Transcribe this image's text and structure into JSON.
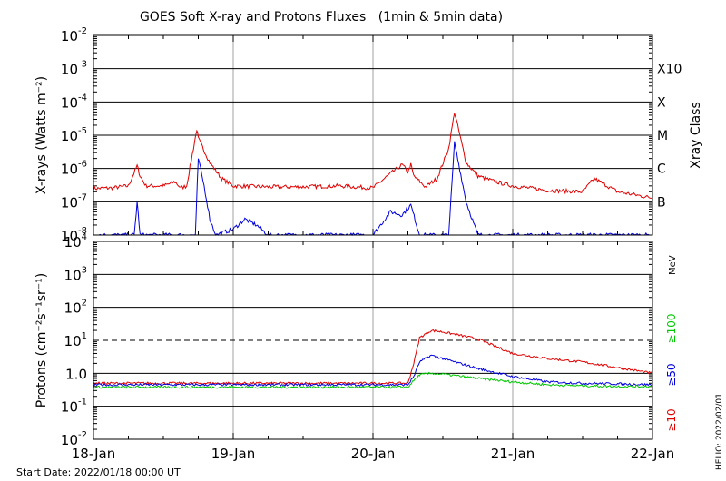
{
  "title": "GOES Soft X-ray and Protons Fluxes   (1min & 5min data)",
  "start_date": "Start Date: 2022/01/18 00:00 UT",
  "helio_stamp": "HELIO: 2022/02/01",
  "x_tick_labels": [
    "18-Jan",
    "19-Jan",
    "20-Jan",
    "21-Jan",
    "22-Jan"
  ],
  "colors": {
    "red": "#e00000",
    "blue": "#0000e0",
    "green": "#00c800",
    "grid_gray": "#a0a0a0"
  },
  "chart_data": [
    {
      "type": "line",
      "name": "xray",
      "ylabel": "X-rays (Watts m⁻²)",
      "yscale": "log",
      "ylim": [
        1e-08,
        0.01
      ],
      "y_tick_exponents": [
        -8,
        -7,
        -6,
        -5,
        -4,
        -3,
        -2
      ],
      "y_tick_base": "10",
      "right_label": "Xray Class",
      "classes": [
        {
          "label": "X10",
          "value": 0.001
        },
        {
          "label": "X",
          "value": 0.0001
        },
        {
          "label": "M",
          "value": 1e-05
        },
        {
          "label": "C",
          "value": 1e-06
        },
        {
          "label": "B",
          "value": 1e-07
        }
      ],
      "xlim": [
        "2022-01-18 00:00",
        "2022-01-22 00:00"
      ],
      "series": [
        {
          "color": "red",
          "x": [
            "2022-01-18 00:00",
            "2022-01-18 03:00",
            "2022-01-18 06:00",
            "2022-01-18 07:30",
            "2022-01-18 08:00",
            "2022-01-18 09:00",
            "2022-01-18 12:00",
            "2022-01-18 14:00",
            "2022-01-18 15:00",
            "2022-01-18 16:00",
            "2022-01-18 17:45",
            "2022-01-18 18:00",
            "2022-01-18 20:00",
            "2022-01-18 22:00",
            "2022-01-19 00:00",
            "2022-01-19 06:00",
            "2022-01-19 12:00",
            "2022-01-19 18:00",
            "2022-01-20 00:00",
            "2022-01-20 03:00",
            "2022-01-20 05:00",
            "2022-01-20 06:00",
            "2022-01-20 06:30",
            "2022-01-20 07:00",
            "2022-01-20 09:00",
            "2022-01-20 11:00",
            "2022-01-20 13:00",
            "2022-01-20 14:00",
            "2022-01-20 16:00",
            "2022-01-20 18:00",
            "2022-01-20 21:00",
            "2022-01-21 00:00",
            "2022-01-21 06:00",
            "2022-01-21 12:00",
            "2022-01-21 14:00",
            "2022-01-21 18:00",
            "2022-01-22 00:00"
          ],
          "y": [
            2.5e-07,
            2.6e-07,
            3e-07,
            1.2e-06,
            6e-07,
            3e-07,
            3e-07,
            4e-07,
            2.6e-07,
            3e-07,
            1.5e-05,
            8e-06,
            1.5e-06,
            5e-07,
            3e-07,
            2.8e-07,
            2.8e-07,
            3e-07,
            2.6e-07,
            7e-07,
            1.3e-06,
            8e-07,
            1.3e-06,
            6e-07,
            2.8e-07,
            5e-07,
            4e-06,
            5e-05,
            1.5e-06,
            6e-07,
            4e-07,
            3e-07,
            2.2e-07,
            2e-07,
            5e-07,
            2e-07,
            1.3e-07
          ]
        },
        {
          "color": "blue",
          "x": [
            "2022-01-18 00:00",
            "2022-01-18 07:00",
            "2022-01-18 07:30",
            "2022-01-18 08:00",
            "2022-01-18 17:30",
            "2022-01-18 18:00",
            "2022-01-18 19:00",
            "2022-01-18 20:00",
            "2022-01-18 21:00",
            "2022-01-19 00:00",
            "2022-01-19 02:00",
            "2022-01-19 04:00",
            "2022-01-19 06:00",
            "2022-01-20 00:00",
            "2022-01-20 03:00",
            "2022-01-20 05:00",
            "2022-01-20 06:30",
            "2022-01-20 08:00",
            "2022-01-20 13:00",
            "2022-01-20 14:00",
            "2022-01-20 16:00",
            "2022-01-20 18:00",
            "2022-01-21 00:00",
            "2022-01-22 00:00"
          ],
          "y": [
            1e-08,
            1e-08,
            1e-07,
            1e-08,
            1e-08,
            2e-06,
            3e-07,
            3e-08,
            1e-08,
            1.5e-08,
            3e-08,
            2e-08,
            1e-08,
            1e-08,
            5e-08,
            4e-08,
            8e-08,
            1e-08,
            1e-08,
            6e-06,
            1e-07,
            1e-08,
            1e-08,
            1e-08
          ]
        }
      ]
    },
    {
      "type": "line",
      "name": "protons",
      "ylabel": "Protons (cm⁻²s⁻¹sr⁻¹)",
      "yscale": "log",
      "ylim": [
        0.01,
        10000
      ],
      "y_tick_labels": [
        {
          "value": 0.01,
          "base": "10",
          "exp": "-2"
        },
        {
          "value": 0.1,
          "base": "10",
          "exp": "-1"
        },
        {
          "value": 1,
          "base": "1.0",
          "exp": ""
        },
        {
          "value": 10,
          "base": "10",
          "exp": "1"
        },
        {
          "value": 100,
          "base": "10",
          "exp": "2"
        },
        {
          "value": 1000,
          "base": "10",
          "exp": "3"
        },
        {
          "value": 10000,
          "base": "10",
          "exp": "4"
        }
      ],
      "threshold": 10,
      "right_unit": "MeV",
      "xlim": [
        "2022-01-18 00:00",
        "2022-01-22 00:00"
      ],
      "series": [
        {
          "name": "≥10",
          "color": "red",
          "x": [
            "2022-01-18 00:00",
            "2022-01-20 06:00",
            "2022-01-20 07:00",
            "2022-01-20 08:00",
            "2022-01-20 10:00",
            "2022-01-20 12:00",
            "2022-01-20 18:00",
            "2022-01-21 00:00",
            "2022-01-21 06:00",
            "2022-01-21 12:00",
            "2022-01-21 18:00",
            "2022-01-22 00:00"
          ],
          "y": [
            0.5,
            0.5,
            2,
            12,
            20,
            18,
            11,
            4,
            2.8,
            2.2,
            1.5,
            1
          ]
        },
        {
          "name": "≥50",
          "color": "blue",
          "x": [
            "2022-01-18 00:00",
            "2022-01-20 06:00",
            "2022-01-20 07:00",
            "2022-01-20 08:00",
            "2022-01-20 10:00",
            "2022-01-20 12:00",
            "2022-01-20 18:00",
            "2022-01-21 00:00",
            "2022-01-21 06:00",
            "2022-01-21 12:00",
            "2022-01-21 18:00",
            "2022-01-22 00:00"
          ],
          "y": [
            0.45,
            0.45,
            0.8,
            2.2,
            3.5,
            2.8,
            1.4,
            0.8,
            0.55,
            0.5,
            0.48,
            0.45
          ]
        },
        {
          "name": "≥100",
          "color": "green",
          "x": [
            "2022-01-18 00:00",
            "2022-01-20 06:00",
            "2022-01-20 07:00",
            "2022-01-20 08:00",
            "2022-01-20 10:00",
            "2022-01-20 12:00",
            "2022-01-20 18:00",
            "2022-01-21 00:00",
            "2022-01-21 06:00",
            "2022-01-21 12:00",
            "2022-01-21 18:00",
            "2022-01-22 00:00"
          ],
          "y": [
            0.38,
            0.38,
            0.6,
            0.9,
            1.0,
            0.95,
            0.7,
            0.55,
            0.45,
            0.42,
            0.4,
            0.4
          ]
        }
      ]
    }
  ]
}
